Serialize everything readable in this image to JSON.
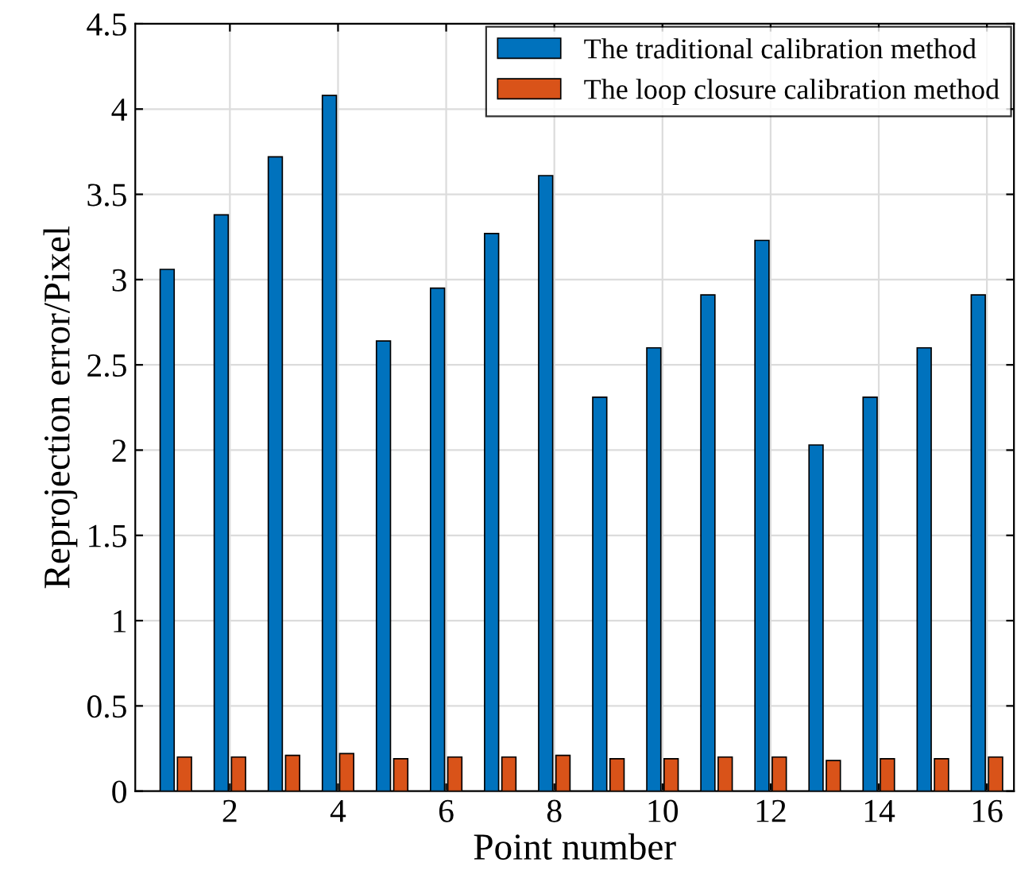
{
  "chart_data": {
    "type": "bar",
    "xlabel": "Point number",
    "ylabel": "Reprojection error/Pixel",
    "x": [
      1,
      2,
      3,
      4,
      5,
      6,
      7,
      8,
      9,
      10,
      11,
      12,
      13,
      14,
      15,
      16
    ],
    "series": [
      {
        "name": "The traditional calibration method",
        "color": "#0072bd",
        "values": [
          3.06,
          3.38,
          3.72,
          4.08,
          2.64,
          2.95,
          3.27,
          3.61,
          2.31,
          2.6,
          2.91,
          3.23,
          2.03,
          2.31,
          2.6,
          2.91
        ]
      },
      {
        "name": "The loop closure calibration method",
        "color": "#d95319",
        "values": [
          0.2,
          0.2,
          0.21,
          0.22,
          0.19,
          0.2,
          0.2,
          0.21,
          0.19,
          0.19,
          0.2,
          0.2,
          0.18,
          0.19,
          0.19,
          0.2
        ]
      }
    ],
    "xlim": [
      0.25,
      16.5
    ],
    "xticks": [
      2,
      4,
      6,
      8,
      10,
      12,
      14,
      16
    ],
    "ylim": [
      0,
      4.5
    ],
    "yticks": [
      0,
      0.5,
      1,
      1.5,
      2,
      2.5,
      3,
      3.5,
      4,
      4.5
    ],
    "grid": true,
    "legend": "top right"
  }
}
